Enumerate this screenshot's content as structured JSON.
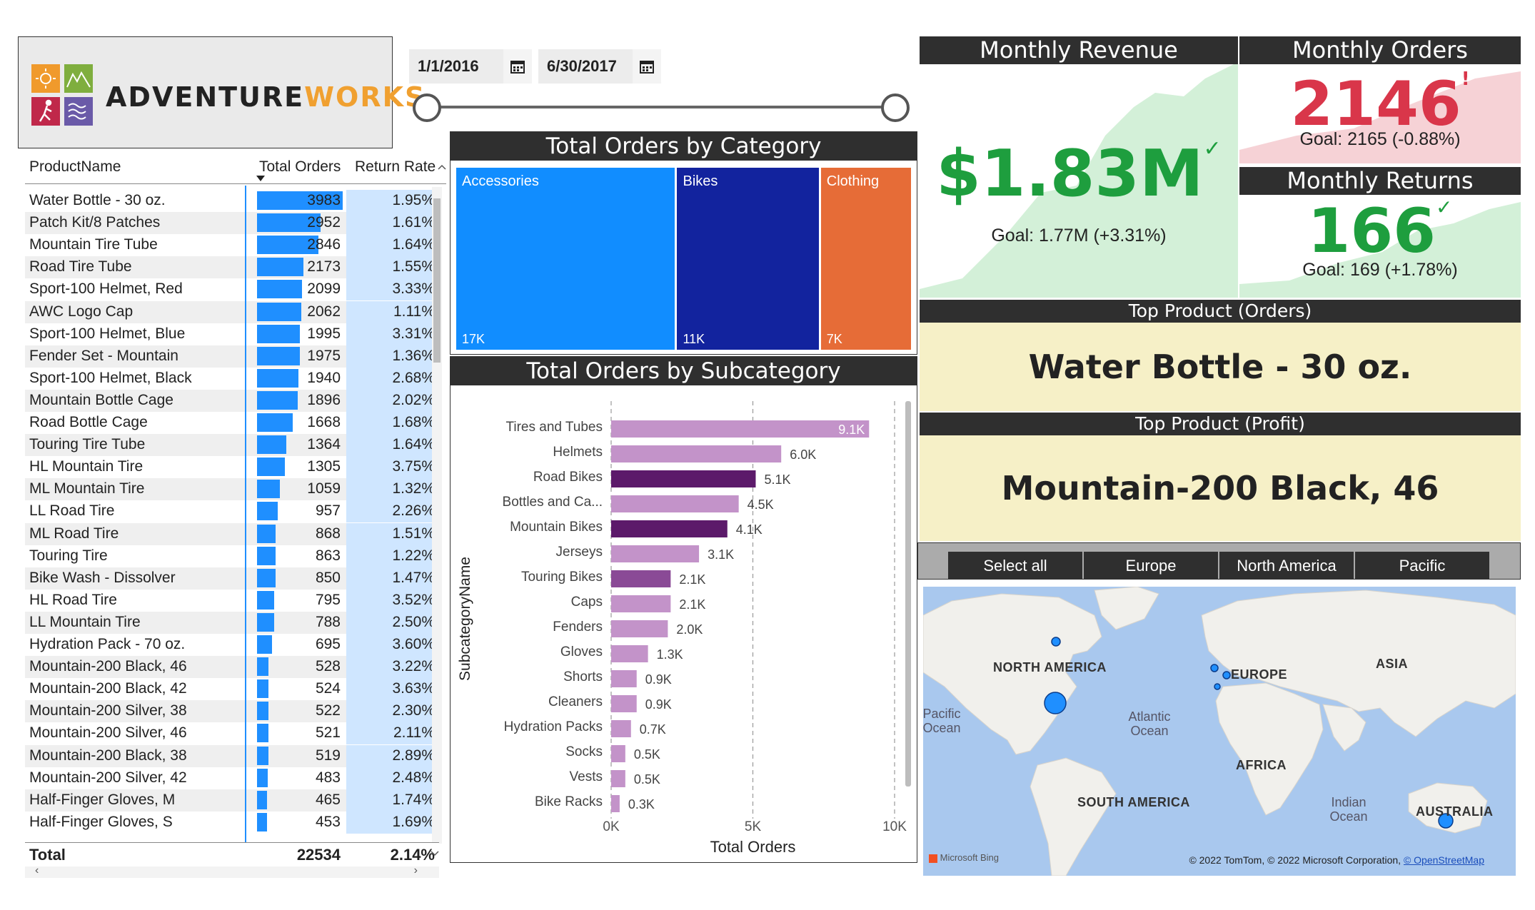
{
  "logo": {
    "brand_dark": "ADVENTURE",
    "brand_accent": "WORKS"
  },
  "date_slicer": {
    "start": "1/1/2016",
    "end": "6/30/2017"
  },
  "table": {
    "headers": {
      "product": "ProductName",
      "orders": "Total Orders",
      "return_rate": "Return Rate"
    },
    "max_orders": 3983,
    "rows": [
      {
        "name": "Water Bottle - 30 oz.",
        "orders": 3983,
        "orders_text": "3983",
        "return_rate": "1.95%"
      },
      {
        "name": "Patch Kit/8 Patches",
        "orders": 2952,
        "orders_text": "2952",
        "return_rate": "1.61%"
      },
      {
        "name": "Mountain Tire Tube",
        "orders": 2846,
        "orders_text": "2846",
        "return_rate": "1.64%"
      },
      {
        "name": "Road Tire Tube",
        "orders": 2173,
        "orders_text": "2173",
        "return_rate": "1.55%"
      },
      {
        "name": "Sport-100 Helmet, Red",
        "orders": 2099,
        "orders_text": "2099",
        "return_rate": "3.33%"
      },
      {
        "name": "AWC Logo Cap",
        "orders": 2062,
        "orders_text": "2062",
        "return_rate": "1.11%"
      },
      {
        "name": "Sport-100 Helmet, Blue",
        "orders": 1995,
        "orders_text": "1995",
        "return_rate": "3.31%"
      },
      {
        "name": "Fender Set - Mountain",
        "orders": 1975,
        "orders_text": "1975",
        "return_rate": "1.36%"
      },
      {
        "name": "Sport-100 Helmet, Black",
        "orders": 1940,
        "orders_text": "1940",
        "return_rate": "2.68%"
      },
      {
        "name": "Mountain Bottle Cage",
        "orders": 1896,
        "orders_text": "1896",
        "return_rate": "2.02%"
      },
      {
        "name": "Road Bottle Cage",
        "orders": 1668,
        "orders_text": "1668",
        "return_rate": "1.68%"
      },
      {
        "name": "Touring Tire Tube",
        "orders": 1364,
        "orders_text": "1364",
        "return_rate": "1.64%"
      },
      {
        "name": "HL Mountain Tire",
        "orders": 1305,
        "orders_text": "1305",
        "return_rate": "3.75%"
      },
      {
        "name": "ML Mountain Tire",
        "orders": 1059,
        "orders_text": "1059",
        "return_rate": "1.32%"
      },
      {
        "name": "LL Road Tire",
        "orders": 957,
        "orders_text": "957",
        "return_rate": "2.26%"
      },
      {
        "name": "ML Road Tire",
        "orders": 868,
        "orders_text": "868",
        "return_rate": "1.51%"
      },
      {
        "name": "Touring Tire",
        "orders": 863,
        "orders_text": "863",
        "return_rate": "1.22%"
      },
      {
        "name": "Bike Wash - Dissolver",
        "orders": 850,
        "orders_text": "850",
        "return_rate": "1.47%"
      },
      {
        "name": "HL Road Tire",
        "orders": 795,
        "orders_text": "795",
        "return_rate": "3.52%"
      },
      {
        "name": "LL Mountain Tire",
        "orders": 788,
        "orders_text": "788",
        "return_rate": "2.50%"
      },
      {
        "name": "Hydration Pack - 70 oz.",
        "orders": 695,
        "orders_text": "695",
        "return_rate": "3.60%"
      },
      {
        "name": "Mountain-200 Black, 46",
        "orders": 528,
        "orders_text": "528",
        "return_rate": "3.22%"
      },
      {
        "name": "Mountain-200 Black, 42",
        "orders": 524,
        "orders_text": "524",
        "return_rate": "3.63%"
      },
      {
        "name": "Mountain-200 Silver, 38",
        "orders": 522,
        "orders_text": "522",
        "return_rate": "2.30%"
      },
      {
        "name": "Mountain-200 Silver, 46",
        "orders": 521,
        "orders_text": "521",
        "return_rate": "2.11%"
      },
      {
        "name": "Mountain-200 Black, 38",
        "orders": 519,
        "orders_text": "519",
        "return_rate": "2.89%"
      },
      {
        "name": "Mountain-200 Silver, 42",
        "orders": 483,
        "orders_text": "483",
        "return_rate": "2.48%"
      },
      {
        "name": "Half-Finger Gloves, M",
        "orders": 465,
        "orders_text": "465",
        "return_rate": "1.74%"
      },
      {
        "name": "Half-Finger Gloves, S",
        "orders": 453,
        "orders_text": "453",
        "return_rate": "1.69%"
      }
    ],
    "total": {
      "label": "Total",
      "orders": "22534",
      "return_rate": "2.14%"
    }
  },
  "treemap": {
    "title": "Total Orders by Category",
    "items": [
      {
        "label": "Accessories",
        "value_label": "17K",
        "value": 17,
        "color": "#118dff"
      },
      {
        "label": "Bikes",
        "value_label": "11K",
        "value": 11,
        "color": "#12239e"
      },
      {
        "label": "Clothing",
        "value_label": "7K",
        "value": 7,
        "color": "#e66c37"
      }
    ]
  },
  "chart_data": {
    "type": "bar",
    "title": "Total Orders by Subcategory",
    "xlabel": "Total Orders",
    "ylabel": "SubcategoryName",
    "xlim": [
      0,
      10000
    ],
    "x_ticks": [
      "0K",
      "5K",
      "10K"
    ],
    "categories": [
      "Tires and Tubes",
      "Helmets",
      "Road Bikes",
      "Bottles and Ca...",
      "Mountain Bikes",
      "Jerseys",
      "Touring Bikes",
      "Caps",
      "Fenders",
      "Gloves",
      "Shorts",
      "Cleaners",
      "Hydration Packs",
      "Socks",
      "Vests",
      "Bike Racks"
    ],
    "values": [
      9100,
      6000,
      5100,
      4500,
      4100,
      3100,
      2100,
      2100,
      2000,
      1300,
      900,
      900,
      700,
      500,
      500,
      300
    ],
    "data_labels": [
      "9.1K",
      "6.0K",
      "5.1K",
      "4.5K",
      "4.1K",
      "3.1K",
      "2.1K",
      "2.1K",
      "2.0K",
      "1.3K",
      "0.9K",
      "0.9K",
      "0.7K",
      "0.5K",
      "0.5K",
      "0.3K"
    ],
    "colors": [
      "#c393c9",
      "#c393c9",
      "#5c1a6a",
      "#c393c9",
      "#5c1a6a",
      "#c393c9",
      "#8a4a96",
      "#c393c9",
      "#c393c9",
      "#c393c9",
      "#c393c9",
      "#c393c9",
      "#c393c9",
      "#c393c9",
      "#c393c9",
      "#c393c9"
    ]
  },
  "kpis": {
    "revenue": {
      "title": "Monthly Revenue",
      "value": "$1.83M",
      "goal": "Goal: 1.77M (+3.31%)",
      "status": "✓",
      "color": "#1e9e3e"
    },
    "orders": {
      "title": "Monthly Orders",
      "value": "2146",
      "goal": "Goal: 2165 (-0.88%)",
      "status": "!",
      "color": "#d9364a"
    },
    "returns": {
      "title": "Monthly Returns",
      "value": "166",
      "goal": "Goal: 169 (+1.78%)",
      "status": "✓",
      "color": "#1e9e3e"
    }
  },
  "top_products": {
    "orders_title": "Top Product (Orders)",
    "orders_value": "Water Bottle - 30 oz.",
    "profit_title": "Top Product (Profit)",
    "profit_value": "Mountain-200 Black, 46"
  },
  "regions": [
    "Select all",
    "Europe",
    "North America",
    "Pacific"
  ],
  "map": {
    "continents": [
      "NORTH AMERICA",
      "EUROPE",
      "ASIA",
      "AFRICA",
      "SOUTH AMERICA",
      "AUSTRALIA"
    ],
    "oceans": [
      "Pacific Ocean",
      "Atlantic Ocean",
      "Indian Ocean"
    ],
    "brand": "Microsoft Bing",
    "attribution": "© 2022 TomTom, © 2022 Microsoft Corporation,",
    "attribution_link": "© OpenStreetMap"
  }
}
